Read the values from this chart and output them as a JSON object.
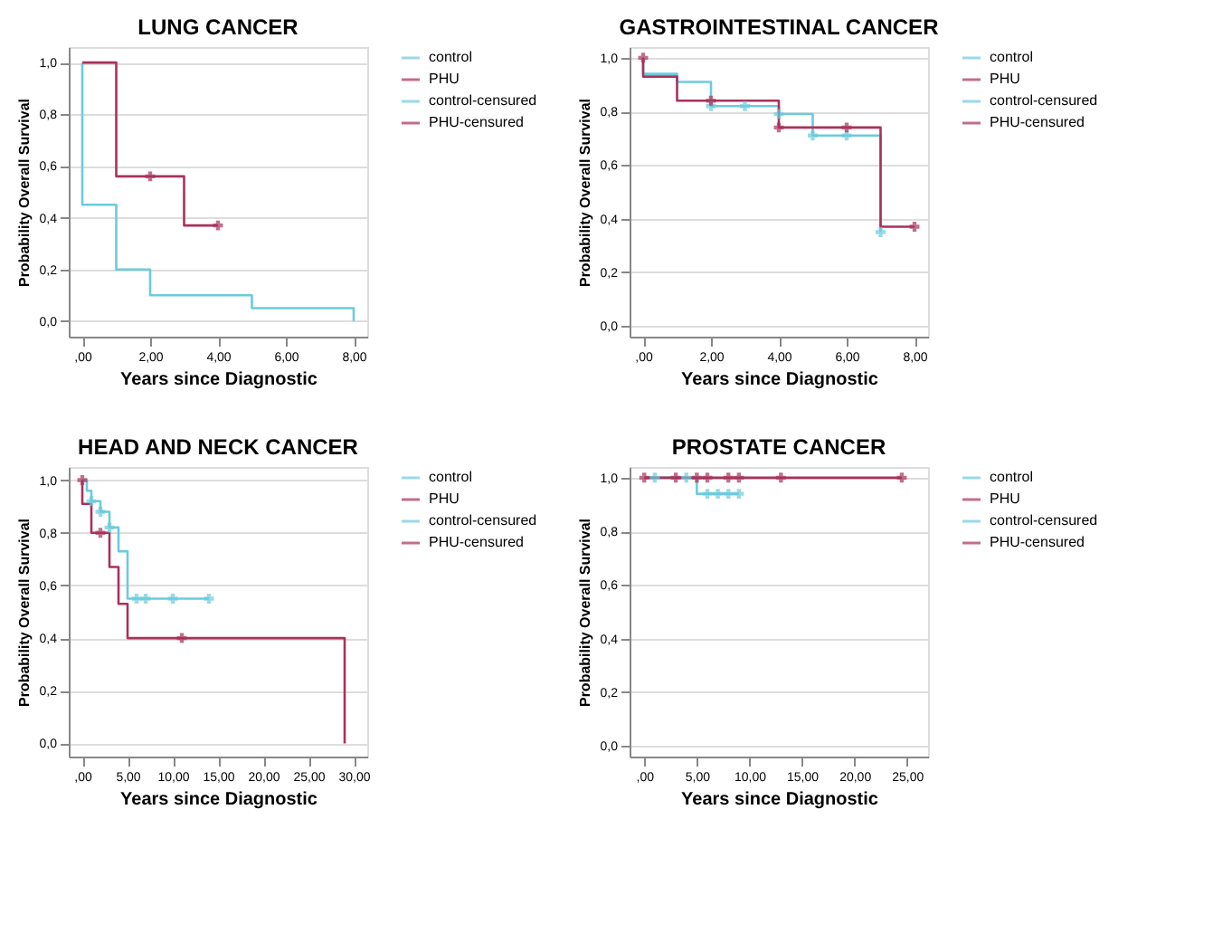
{
  "chart_data": [
    {
      "type": "step",
      "title": "LUNG CANCER",
      "xlabel": "Years since Diagnostic",
      "ylabel": "Probability Overall Survival",
      "legend": "right",
      "grid": "y",
      "xlim": [
        -0.4,
        8.4
      ],
      "xticks": [
        {
          "value": 0,
          "label": ",00"
        },
        {
          "value": 2,
          "label": "2,00"
        },
        {
          "value": 4,
          "label": "4,00"
        },
        {
          "value": 6,
          "label": "6,00"
        },
        {
          "value": 8,
          "label": "8,00"
        }
      ],
      "ylim": [
        -0.06,
        1.06
      ],
      "yticks": [
        {
          "value": 0,
          "label": "0,0"
        },
        {
          "value": 0.2,
          "label": "0,2"
        },
        {
          "value": 0.4,
          "label": "0,4"
        },
        {
          "value": 0.6,
          "label": "0,6"
        },
        {
          "value": 0.8,
          "label": "0,8"
        },
        {
          "value": 1,
          "label": "1,0"
        }
      ],
      "series": [
        {
          "name": "control",
          "color": "#6ccbdc",
          "x": [
            0,
            0,
            1,
            2,
            5,
            8
          ],
          "values": [
            1.0,
            0.45,
            0.2,
            0.1,
            0.05,
            0.0
          ]
        },
        {
          "name": "PHU",
          "color": "#a8325a",
          "x": [
            0,
            1,
            3,
            4
          ],
          "values": [
            1.0,
            0.56,
            0.37,
            0.37
          ]
        },
        {
          "name": "control-censured",
          "type": "scatter",
          "marker": "cross",
          "color": "#6ccbdc"
        },
        {
          "name": "PHU-censured",
          "type": "scatter",
          "marker": "cross",
          "color": "#a8325a",
          "x": [
            2,
            4
          ],
          "values": [
            0.56,
            0.37
          ]
        }
      ]
    },
    {
      "type": "step",
      "title": "GASTROINTESTINAL CANCER",
      "xlabel": "Years since Diagnostic",
      "ylabel": "Probability Overall Survival",
      "legend": "right",
      "grid": "y",
      "xlim": [
        -0.4,
        8.4
      ],
      "xticks": [
        {
          "value": 0,
          "label": ",00"
        },
        {
          "value": 2,
          "label": "2,00"
        },
        {
          "value": 4,
          "label": "4,00"
        },
        {
          "value": 6,
          "label": "6,00"
        },
        {
          "value": 8,
          "label": "8,00"
        }
      ],
      "ylim": [
        -0.04,
        1.04
      ],
      "yticks": [
        {
          "value": 0,
          "label": "0,0"
        },
        {
          "value": 0.2,
          "label": "0,2"
        },
        {
          "value": 0.4,
          "label": "0,4"
        },
        {
          "value": 0.6,
          "label": "0,6"
        },
        {
          "value": 0.8,
          "label": "0,8"
        },
        {
          "value": 1,
          "label": "1,0"
        }
      ],
      "series": [
        {
          "name": "control",
          "color": "#6ccbdc",
          "x": [
            0,
            0,
            1,
            2,
            4,
            5,
            7
          ],
          "values": [
            1.0,
            0.94,
            0.91,
            0.82,
            0.79,
            0.71,
            0.35
          ]
        },
        {
          "name": "PHU",
          "color": "#a8325a",
          "x": [
            0,
            0,
            1,
            4,
            7,
            8
          ],
          "values": [
            1.0,
            0.93,
            0.84,
            0.74,
            0.37,
            0.37
          ]
        },
        {
          "name": "control-censured",
          "type": "scatter",
          "marker": "cross",
          "color": "#6ccbdc",
          "x": [
            2,
            3,
            4,
            5,
            6,
            7
          ],
          "values": [
            0.82,
            0.82,
            0.79,
            0.71,
            0.71,
            0.35
          ]
        },
        {
          "name": "PHU-censured",
          "type": "scatter",
          "marker": "cross",
          "color": "#a8325a",
          "x": [
            0,
            2,
            4,
            6,
            8
          ],
          "values": [
            1.0,
            0.84,
            0.74,
            0.74,
            0.37
          ]
        }
      ]
    },
    {
      "type": "step",
      "title": "HEAD AND NECK CANCER",
      "xlabel": "Years since Diagnostic",
      "ylabel": "Probability Overall Survival",
      "legend": "right",
      "grid": "y",
      "xlim": [
        -1.5,
        31.5
      ],
      "xticks": [
        {
          "value": 0,
          "label": ",00"
        },
        {
          "value": 5,
          "label": "5,00"
        },
        {
          "value": 10,
          "label": "10,00"
        },
        {
          "value": 15,
          "label": "15,00"
        },
        {
          "value": 20,
          "label": "20,00"
        },
        {
          "value": 25,
          "label": "25,00"
        },
        {
          "value": 30,
          "label": "30,00"
        }
      ],
      "ylim": [
        -0.05,
        1.05
      ],
      "yticks": [
        {
          "value": 0,
          "label": "0,0"
        },
        {
          "value": 0.2,
          "label": "0,2"
        },
        {
          "value": 0.4,
          "label": "0,4"
        },
        {
          "value": 0.6,
          "label": "0,6"
        },
        {
          "value": 0.8,
          "label": "0,8"
        },
        {
          "value": 1,
          "label": "1,0"
        }
      ],
      "series": [
        {
          "name": "control",
          "color": "#6ccbdc",
          "x": [
            0,
            0.5,
            1,
            2,
            3,
            4,
            5,
            14
          ],
          "values": [
            1.0,
            0.96,
            0.92,
            0.88,
            0.82,
            0.73,
            0.55,
            0.55
          ]
        },
        {
          "name": "PHU",
          "color": "#a8325a",
          "x": [
            0,
            0,
            1,
            3,
            4,
            5,
            29
          ],
          "values": [
            1.0,
            0.91,
            0.8,
            0.67,
            0.53,
            0.4,
            0.0
          ]
        },
        {
          "name": "control-censured",
          "type": "scatter",
          "marker": "cross",
          "color": "#6ccbdc",
          "x": [
            1,
            2,
            3,
            6,
            7,
            10,
            14
          ],
          "values": [
            0.92,
            0.88,
            0.82,
            0.55,
            0.55,
            0.55,
            0.55
          ]
        },
        {
          "name": "PHU-censured",
          "type": "scatter",
          "marker": "cross",
          "color": "#a8325a",
          "x": [
            0,
            2,
            11
          ],
          "values": [
            1.0,
            0.8,
            0.4
          ]
        }
      ]
    },
    {
      "type": "step",
      "title": "PROSTATE CANCER",
      "xlabel": "Years since Diagnostic",
      "ylabel": "Probability Overall Survival",
      "legend": "right",
      "grid": "y",
      "xlim": [
        -1.4,
        27
      ],
      "xticks": [
        {
          "value": 0,
          "label": ",00"
        },
        {
          "value": 5,
          "label": "5,00"
        },
        {
          "value": 10,
          "label": "10,00"
        },
        {
          "value": 15,
          "label": "15,00"
        },
        {
          "value": 20,
          "label": "20,00"
        },
        {
          "value": 25,
          "label": "25,00"
        }
      ],
      "ylim": [
        -0.04,
        1.04
      ],
      "yticks": [
        {
          "value": 0,
          "label": "0,0"
        },
        {
          "value": 0.2,
          "label": "0,2"
        },
        {
          "value": 0.4,
          "label": "0,4"
        },
        {
          "value": 0.6,
          "label": "0,6"
        },
        {
          "value": 0.8,
          "label": "0,8"
        },
        {
          "value": 1,
          "label": "1,0"
        }
      ],
      "series": [
        {
          "name": "control",
          "color": "#6ccbdc",
          "x": [
            0,
            5,
            9
          ],
          "values": [
            1.0,
            0.94,
            0.94
          ]
        },
        {
          "name": "PHU",
          "color": "#a8325a",
          "x": [
            0,
            24.5
          ],
          "values": [
            1.0,
            1.0
          ]
        },
        {
          "name": "control-censured",
          "type": "scatter",
          "marker": "cross",
          "color": "#6ccbdc",
          "x": [
            1,
            4,
            6,
            7,
            8,
            9
          ],
          "values": [
            1.0,
            1.0,
            0.94,
            0.94,
            0.94,
            0.94
          ]
        },
        {
          "name": "PHU-censured",
          "type": "scatter",
          "marker": "cross",
          "color": "#a8325a",
          "x": [
            0,
            3,
            5,
            6,
            8,
            9,
            13,
            24.5
          ],
          "values": [
            1.0,
            1.0,
            1.0,
            1.0,
            1.0,
            1.0,
            1.0,
            1.0
          ]
        }
      ]
    }
  ]
}
